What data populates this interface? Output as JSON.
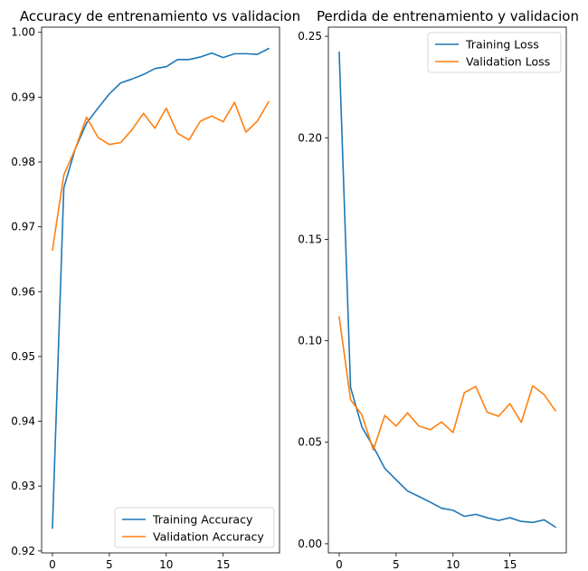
{
  "chart_data": [
    {
      "type": "line",
      "title": "Accuracy de entrenamiento vs validacion",
      "xlabel": "",
      "ylabel": "",
      "x": [
        0,
        1,
        2,
        3,
        4,
        5,
        6,
        7,
        8,
        9,
        10,
        11,
        12,
        13,
        14,
        15,
        16,
        17,
        18,
        19
      ],
      "xlim": [
        -0.95,
        19.95
      ],
      "ylim": [
        0.9197,
        1.0008
      ],
      "xticks": [
        0,
        5,
        10,
        15
      ],
      "yticks": [
        0.92,
        0.93,
        0.94,
        0.95,
        0.96,
        0.97,
        0.98,
        0.99,
        1.0
      ],
      "ytick_labels": [
        "0.92",
        "0.93",
        "0.94",
        "0.95",
        "0.96",
        "0.97",
        "0.98",
        "0.99",
        "1.00"
      ],
      "legend_position": "lower-right",
      "series": [
        {
          "name": "Training Accuracy",
          "color": "#1f77b4",
          "values": [
            0.9235,
            0.976,
            0.982,
            0.986,
            0.9883,
            0.9905,
            0.9922,
            0.9928,
            0.9935,
            0.9944,
            0.9947,
            0.9958,
            0.9958,
            0.9962,
            0.9968,
            0.9961,
            0.9967,
            0.9967,
            0.9966,
            0.9975
          ]
        },
        {
          "name": "Validation Accuracy",
          "color": "#ff7f0e",
          "values": [
            0.9664,
            0.978,
            0.982,
            0.9869,
            0.9838,
            0.9827,
            0.983,
            0.985,
            0.9875,
            0.9852,
            0.9883,
            0.9844,
            0.9834,
            0.9863,
            0.9871,
            0.9862,
            0.9892,
            0.9846,
            0.9863,
            0.9893
          ]
        }
      ]
    },
    {
      "type": "line",
      "title": "Perdida de entrenamiento y validacion",
      "xlabel": "",
      "ylabel": "",
      "x": [
        0,
        1,
        2,
        3,
        4,
        5,
        6,
        7,
        8,
        9,
        10,
        11,
        12,
        13,
        14,
        15,
        16,
        17,
        18,
        19
      ],
      "xlim": [
        -0.95,
        19.95
      ],
      "ylim": [
        -0.0045,
        0.2545
      ],
      "xticks": [
        0,
        5,
        10,
        15
      ],
      "yticks": [
        0.0,
        0.05,
        0.1,
        0.15,
        0.2,
        0.25
      ],
      "ytick_labels": [
        "0.00",
        "0.05",
        "0.10",
        "0.15",
        "0.20",
        "0.25"
      ],
      "legend_position": "upper-right",
      "series": [
        {
          "name": "Training Loss",
          "color": "#1f77b4",
          "values": [
            0.2422,
            0.077,
            0.0575,
            0.0478,
            0.0372,
            0.0315,
            0.026,
            0.0233,
            0.0205,
            0.0175,
            0.0165,
            0.0135,
            0.0145,
            0.0128,
            0.0115,
            0.0128,
            0.011,
            0.0105,
            0.0118,
            0.0082
          ]
        },
        {
          "name": "Validation Loss",
          "color": "#ff7f0e",
          "values": [
            0.1118,
            0.071,
            0.0635,
            0.0462,
            0.0632,
            0.058,
            0.0645,
            0.058,
            0.0562,
            0.06,
            0.0548,
            0.0745,
            0.0775,
            0.0648,
            0.0628,
            0.069,
            0.0598,
            0.0778,
            0.0735,
            0.0655
          ]
        }
      ]
    }
  ]
}
